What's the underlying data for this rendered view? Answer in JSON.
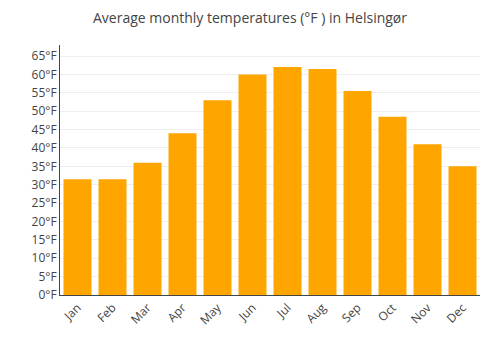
{
  "chart_data": {
    "type": "bar",
    "title": "Average monthly temperatures (°F ) in Helsingør",
    "categories": [
      "Jan",
      "Feb",
      "Mar",
      "Apr",
      "May",
      "Jun",
      "Jul",
      "Aug",
      "Sep",
      "Oct",
      "Nov",
      "Dec"
    ],
    "values": [
      31.5,
      31.5,
      36,
      44,
      53,
      60,
      62,
      61.5,
      55.5,
      48.5,
      41,
      35
    ],
    "color": "#FFA500",
    "ylim": [
      0,
      68
    ],
    "yticks": [
      {
        "value": 0,
        "label": "0°F"
      },
      {
        "value": 5,
        "label": "5°F"
      },
      {
        "value": 10,
        "label": "10°F"
      },
      {
        "value": 15,
        "label": "15°F"
      },
      {
        "value": 20,
        "label": "20°F"
      },
      {
        "value": 25,
        "label": "25°F"
      },
      {
        "value": 30,
        "label": "30°F"
      },
      {
        "value": 35,
        "label": "35°F"
      },
      {
        "value": 40,
        "label": "40°F"
      },
      {
        "value": 45,
        "label": "45°F"
      },
      {
        "value": 50,
        "label": "50°F"
      },
      {
        "value": 55,
        "label": "55°F"
      },
      {
        "value": 60,
        "label": "60°F"
      },
      {
        "value": 65,
        "label": "65°F"
      }
    ],
    "grid": true
  }
}
